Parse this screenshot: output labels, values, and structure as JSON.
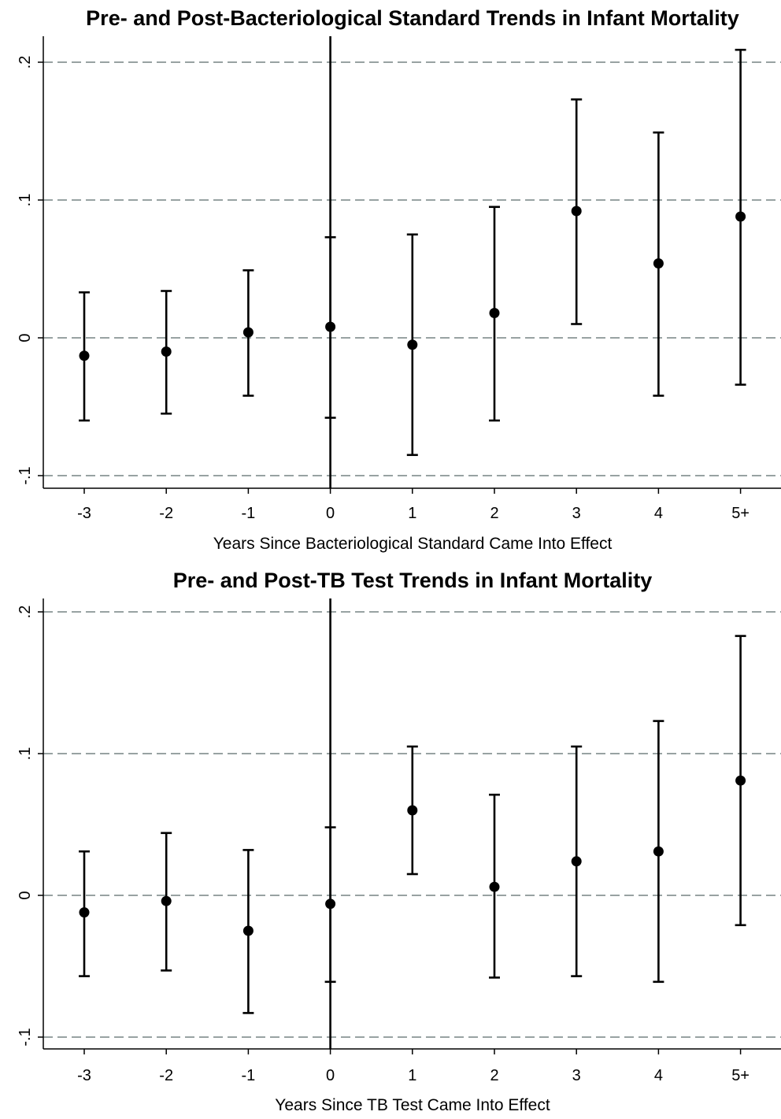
{
  "chart_data": [
    {
      "type": "scatter",
      "subtype": "point-with-error-bars",
      "title": "Pre- and Post-Bacteriological Standard Trends in Infant Mortality",
      "xlabel": "Years Since Bacteriological Standard Came Into Effect",
      "ylabel": "",
      "categories": [
        "-3",
        "-2",
        "-1",
        "0",
        "1",
        "2",
        "3",
        "4",
        "5+"
      ],
      "y_ticks": [
        {
          "value": -0.1,
          "label": "-.1"
        },
        {
          "value": 0,
          "label": "0"
        },
        {
          "value": 0.1,
          "label": ".1"
        },
        {
          "value": 0.2,
          "label": ".2"
        }
      ],
      "ylim": [
        -0.11,
        0.215
      ],
      "grid": "dashed horizontal at y ticks",
      "event_line_at": "0",
      "points": [
        {
          "x": "-3",
          "y": -0.013,
          "lower": -0.06,
          "upper": 0.033
        },
        {
          "x": "-2",
          "y": -0.01,
          "lower": -0.055,
          "upper": 0.034
        },
        {
          "x": "-1",
          "y": 0.004,
          "lower": -0.042,
          "upper": 0.049
        },
        {
          "x": "0",
          "y": 0.008,
          "lower": -0.058,
          "upper": 0.073
        },
        {
          "x": "1",
          "y": -0.005,
          "lower": -0.085,
          "upper": 0.075
        },
        {
          "x": "2",
          "y": 0.018,
          "lower": -0.06,
          "upper": 0.095
        },
        {
          "x": "3",
          "y": 0.092,
          "lower": 0.01,
          "upper": 0.173
        },
        {
          "x": "4",
          "y": 0.054,
          "lower": -0.042,
          "upper": 0.149
        },
        {
          "x": "5+",
          "y": 0.088,
          "lower": -0.034,
          "upper": 0.209
        }
      ]
    },
    {
      "type": "scatter",
      "subtype": "point-with-error-bars",
      "title": "Pre- and Post-TB Test Trends in Infant Mortality",
      "xlabel": "Years Since TB Test Came Into Effect",
      "ylabel": "",
      "categories": [
        "-3",
        "-2",
        "-1",
        "0",
        "1",
        "2",
        "3",
        "4",
        "5+"
      ],
      "y_ticks": [
        {
          "value": -0.1,
          "label": "-.1"
        },
        {
          "value": 0,
          "label": "0"
        },
        {
          "value": 0.1,
          "label": ".1"
        },
        {
          "value": 0.2,
          "label": ".2"
        }
      ],
      "ylim": [
        -0.11,
        0.21
      ],
      "grid": "dashed horizontal at y ticks",
      "event_line_at": "0",
      "points": [
        {
          "x": "-3",
          "y": -0.012,
          "lower": -0.057,
          "upper": 0.031
        },
        {
          "x": "-2",
          "y": -0.004,
          "lower": -0.053,
          "upper": 0.044
        },
        {
          "x": "-1",
          "y": -0.025,
          "lower": -0.083,
          "upper": 0.032
        },
        {
          "x": "0",
          "y": -0.006,
          "lower": -0.061,
          "upper": 0.048
        },
        {
          "x": "1",
          "y": 0.06,
          "lower": 0.015,
          "upper": 0.105
        },
        {
          "x": "2",
          "y": 0.006,
          "lower": -0.058,
          "upper": 0.071
        },
        {
          "x": "3",
          "y": 0.024,
          "lower": -0.057,
          "upper": 0.105
        },
        {
          "x": "4",
          "y": 0.031,
          "lower": -0.061,
          "upper": 0.123
        },
        {
          "x": "5+",
          "y": 0.081,
          "lower": -0.021,
          "upper": 0.183
        }
      ]
    }
  ]
}
